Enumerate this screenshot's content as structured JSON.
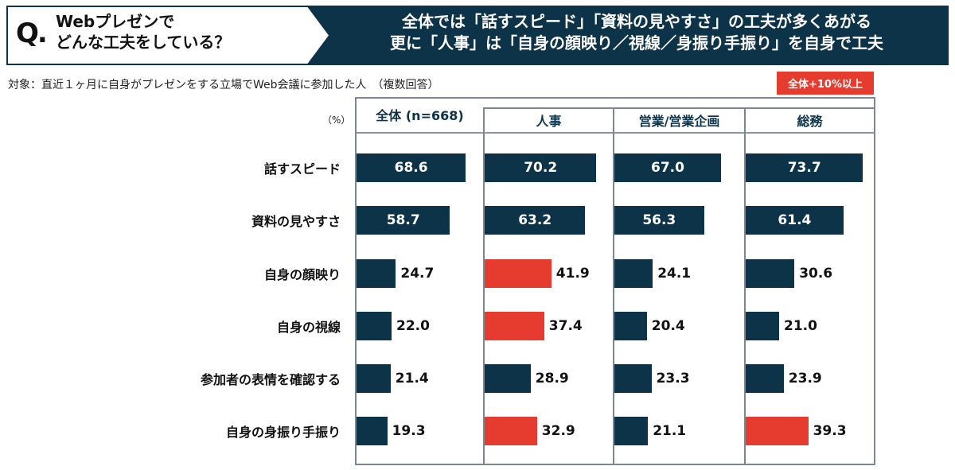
{
  "header": {
    "q_mark": "Q.",
    "question_line1": "Webプレゼンで",
    "question_line2": "どんな工夫をしている？",
    "headline_line1": "全体では「話すスピード」「資料の見やすさ」の工夫が多くあがる",
    "headline_line2": "更に「人事」は「自身の顔映り／視線／身振り手振り」を自身で工夫"
  },
  "target_text": "対象：直近１ヶ月に自身がプレゼンをする立場でWeb会議に参加した人　（複数回答）",
  "legend_label": "全体+10%以上",
  "colors": {
    "primary": "#0d3349",
    "highlight": "#e63c2f",
    "header_bg": "#0d3349"
  },
  "chart_data": {
    "type": "bar",
    "orientation": "horizontal",
    "unit_label": "（%）",
    "categories": [
      "話すスピード",
      "資料の見やすさ",
      "自身の顔映り",
      "自身の視線",
      "参加者の表情を確認する",
      "自身の身振り手振り"
    ],
    "series": [
      {
        "name": "全体 (n=668)",
        "values": [
          68.6,
          58.7,
          24.7,
          22.0,
          21.4,
          19.3
        ],
        "highlight": [
          false,
          false,
          false,
          false,
          false,
          false
        ]
      },
      {
        "name": "人事",
        "values": [
          70.2,
          63.2,
          41.9,
          37.4,
          28.9,
          32.9
        ],
        "highlight": [
          false,
          false,
          true,
          true,
          false,
          true
        ]
      },
      {
        "name": "営業/営業企画",
        "values": [
          67.0,
          56.3,
          24.1,
          20.4,
          23.3,
          21.1
        ],
        "highlight": [
          false,
          false,
          false,
          false,
          false,
          false
        ]
      },
      {
        "name": "総務",
        "values": [
          73.7,
          61.4,
          30.6,
          21.0,
          23.9,
          39.3
        ],
        "highlight": [
          false,
          false,
          false,
          false,
          false,
          true
        ]
      }
    ]
  }
}
